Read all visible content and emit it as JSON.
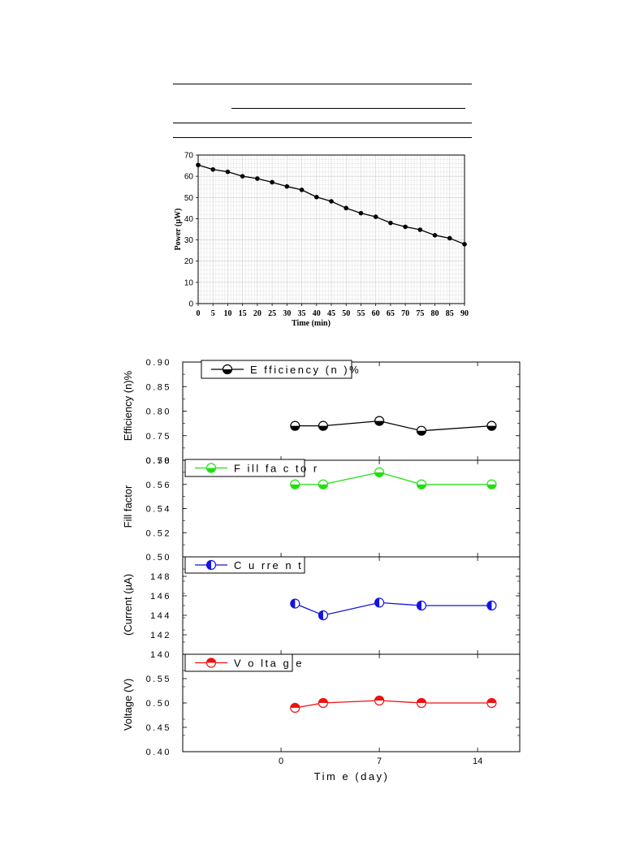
{
  "colors": {
    "efficiency": "#000000",
    "fill_factor": "#22e010",
    "current": "#1414e0",
    "voltage": "#ee1111",
    "grid_minor": "#e6e6e6",
    "grid_major": "#cccccc"
  },
  "chart_data": [
    {
      "type": "line",
      "title": "",
      "xlabel": "Time (min)",
      "ylabel": "Power (µW)",
      "xlim": [
        0,
        90
      ],
      "ylim": [
        0,
        70
      ],
      "grid": true,
      "x_ticks": [
        "0",
        "5",
        "10",
        "15",
        "20",
        "25",
        "30",
        "35",
        "40",
        "45",
        "50",
        "55",
        "60",
        "65",
        "70",
        "75",
        "80",
        "85",
        "90"
      ],
      "y_ticks": [
        "0",
        "10",
        "20",
        "30",
        "40",
        "50",
        "60",
        "70"
      ],
      "x": [
        0,
        5,
        10,
        15,
        20,
        25,
        30,
        35,
        40,
        45,
        50,
        55,
        60,
        65,
        70,
        75,
        80,
        85,
        90
      ],
      "series": [
        {
          "values": [
            65.3,
            63.2,
            62.1,
            60.0,
            58.9,
            57.2,
            55.2,
            53.6,
            50.2,
            48.2,
            45.0,
            42.6,
            40.9,
            38.0,
            36.2,
            34.8,
            32.2,
            30.8,
            28.0
          ]
        }
      ]
    },
    {
      "type": "line",
      "title": "",
      "xlabel": "Tim e (day)",
      "xlim": [
        -7,
        17
      ],
      "x_ticks": [
        "0",
        "7",
        "14"
      ],
      "x": [
        1,
        3,
        7,
        10,
        15
      ],
      "panels": [
        {
          "name": "efficiency",
          "ylabel": "Efficiency (n)%",
          "legend": "E fficiency (n )%",
          "ylim": [
            0.7,
            0.9
          ],
          "y_ticks": [
            "0.90",
            "0.85",
            "0.80",
            "0.75",
            "0.70"
          ],
          "values": [
            0.77,
            0.77,
            0.78,
            0.76,
            0.77
          ]
        },
        {
          "name": "fill_factor",
          "ylabel": "Fill factor",
          "legend": "F ill fa c to r",
          "ylim": [
            0.5,
            0.58
          ],
          "y_ticks": [
            "0.58",
            "0.56",
            "0.54",
            "0.52",
            "0.50"
          ],
          "values": [
            0.56,
            0.56,
            0.57,
            0.56,
            0.56
          ]
        },
        {
          "name": "current",
          "ylabel": "(Current (µA)",
          "legend": "C u rre n t",
          "ylim": [
            140,
            150
          ],
          "y_ticks": [
            "148",
            "146",
            "144",
            "142",
            "140"
          ],
          "values": [
            145.2,
            144.0,
            145.3,
            145.0,
            145.0
          ]
        },
        {
          "name": "voltage",
          "ylabel": "Voltage (V)",
          "legend": "V o lta g e",
          "ylim": [
            0.4,
            0.6
          ],
          "y_ticks": [
            "0.55",
            "0.50",
            "0.45",
            "0.40"
          ],
          "values": [
            0.49,
            0.5,
            0.505,
            0.5,
            0.5
          ]
        }
      ]
    }
  ]
}
